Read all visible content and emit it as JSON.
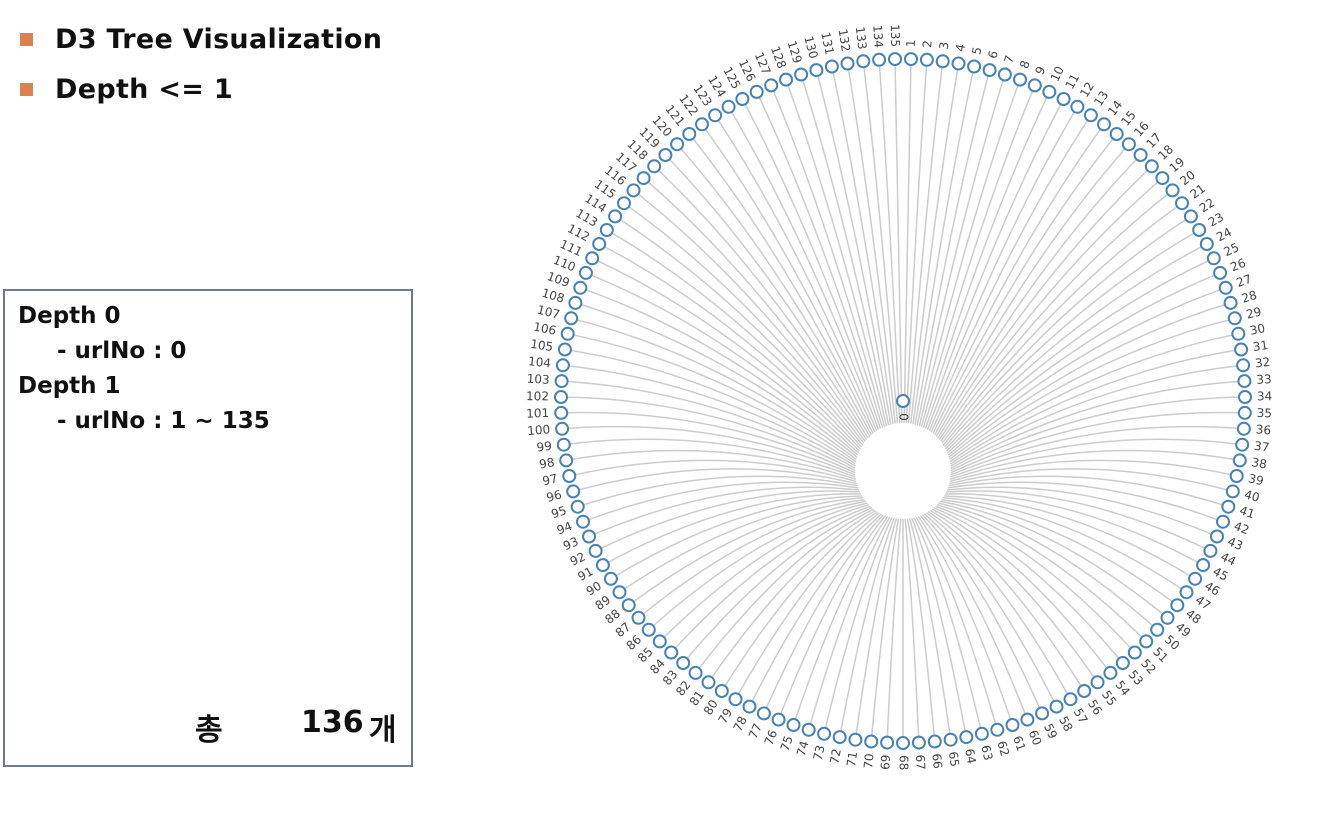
{
  "header": {
    "bullets": [
      {
        "text": "D3 Tree Visualization"
      },
      {
        "text": "Depth <= 1"
      }
    ],
    "bullet_color": "#d9824f"
  },
  "info_box": {
    "depth0_title": "Depth 0",
    "depth0_detail": "- urlNo : 0",
    "depth1_title": "Depth 1",
    "depth1_detail": "- urlNo : 1 ~ 135",
    "total_label": "총",
    "total_value": "136",
    "total_unit": "개"
  },
  "tree": {
    "layout": "radial",
    "root": {
      "label": "0",
      "depth": 0
    },
    "children_first": 1,
    "children_last": 135,
    "child_depth": 1,
    "node_stroke_color": "#4682b4",
    "link_color": "#cccccc"
  }
}
